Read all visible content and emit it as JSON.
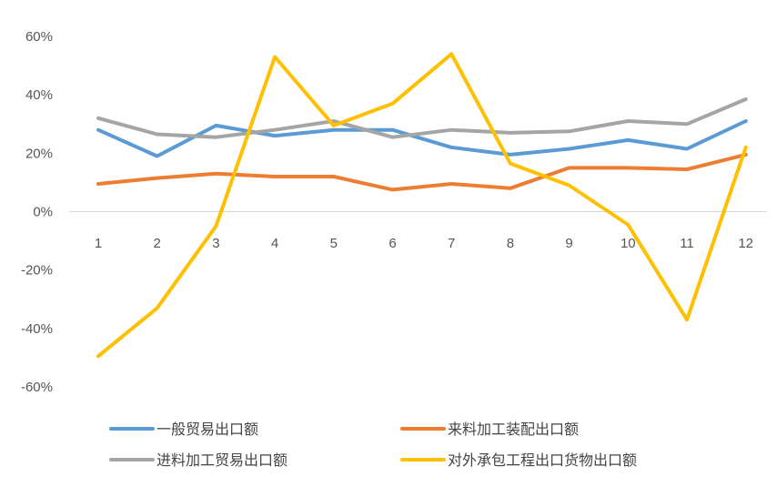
{
  "chart_data": {
    "type": "line",
    "categories": [
      "1",
      "2",
      "3",
      "4",
      "5",
      "6",
      "7",
      "8",
      "9",
      "10",
      "11",
      "12"
    ],
    "yticks": [
      "60%",
      "40%",
      "20%",
      "0%",
      "-20%",
      "-40%",
      "-60%"
    ],
    "ytick_values": [
      60,
      40,
      20,
      0,
      -20,
      -40,
      -60
    ],
    "ylim": [
      -60,
      60
    ],
    "grid": false,
    "legend_position": "bottom",
    "series": [
      {
        "name": "一般贸易出口额",
        "color": "#5B9BD5",
        "values": [
          28,
          19,
          29.5,
          26,
          28,
          28,
          22,
          19.5,
          21.5,
          24.5,
          21.5,
          31
        ]
      },
      {
        "name": "来料加工装配出口额",
        "color": "#ED7D31",
        "values": [
          9.5,
          11.5,
          13,
          12,
          12,
          7.5,
          9.5,
          8,
          15,
          15,
          14.5,
          19.5
        ]
      },
      {
        "name": "进料加工贸易出口额",
        "color": "#A5A5A5",
        "values": [
          32,
          26.5,
          25.5,
          28,
          31,
          25.5,
          28,
          27,
          27.5,
          31,
          30,
          38.5
        ]
      },
      {
        "name": "对外承包工程出口货物出口额",
        "color": "#FFC000",
        "values": [
          -49.5,
          -33,
          -5,
          53,
          29.5,
          37,
          54,
          16.5,
          9,
          -4.5,
          -37,
          22
        ]
      }
    ]
  }
}
